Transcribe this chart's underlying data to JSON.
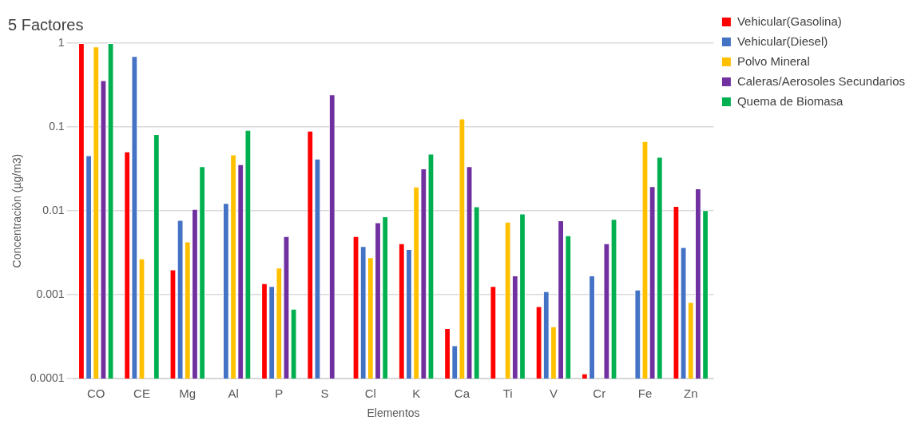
{
  "chart_data": {
    "type": "bar",
    "title": "5 Factores",
    "xlabel": "Elementos",
    "ylabel": "Concentraciòn (µg/m3)",
    "categories": [
      "CO",
      "CE",
      "Mg",
      "Al",
      "P",
      "S",
      "Cl",
      "K",
      "Ca",
      "Ti",
      "V",
      "Cr",
      "Fe",
      "Zn"
    ],
    "series": [
      {
        "name": "Vehicular(Gasolina)",
        "color": "#ff0000",
        "values": [
          1,
          0.051,
          0.002,
          null,
          0.00137,
          0.09,
          0.005,
          0.0041,
          0.0004,
          0.00127,
          0.00073,
          0.000115,
          null,
          0.0114
        ]
      },
      {
        "name": "Vehicular(Diesel)",
        "color": "#4472c4",
        "values": [
          0.046,
          0.7,
          0.0078,
          0.0124,
          0.00127,
          0.042,
          0.0038,
          0.0035,
          0.00025,
          null,
          0.0011,
          0.0017,
          0.00115,
          0.0037
        ]
      },
      {
        "name": "Polvo Mineral",
        "color": "#ffc000",
        "values": [
          0.91,
          0.0027,
          0.0043,
          0.047,
          0.0021,
          null,
          0.0028,
          0.0195,
          0.126,
          0.0074,
          0.00042,
          null,
          0.068,
          0.00082
        ]
      },
      {
        "name": "Caleras/Aerosoles Secundarios",
        "color": "#7030a0",
        "values": [
          0.36,
          null,
          0.0105,
          0.036,
          0.005,
          0.245,
          0.0073,
          0.032,
          0.034,
          0.0017,
          0.0077,
          0.0041,
          0.0197,
          0.0185
        ]
      },
      {
        "name": "Quema de Biomasa",
        "color": "#00b050",
        "values": [
          1,
          0.082,
          0.034,
          0.092,
          0.00068,
          null,
          0.0086,
          0.048,
          0.0113,
          0.0093,
          0.0051,
          0.008,
          0.044,
          0.0102
        ]
      }
    ],
    "log": "y",
    "ylim": [
      0.0001,
      1
    ],
    "yticks": [
      0.0001,
      0.001,
      0.01,
      0.1,
      1
    ],
    "grid": "y",
    "legend": "top right"
  }
}
